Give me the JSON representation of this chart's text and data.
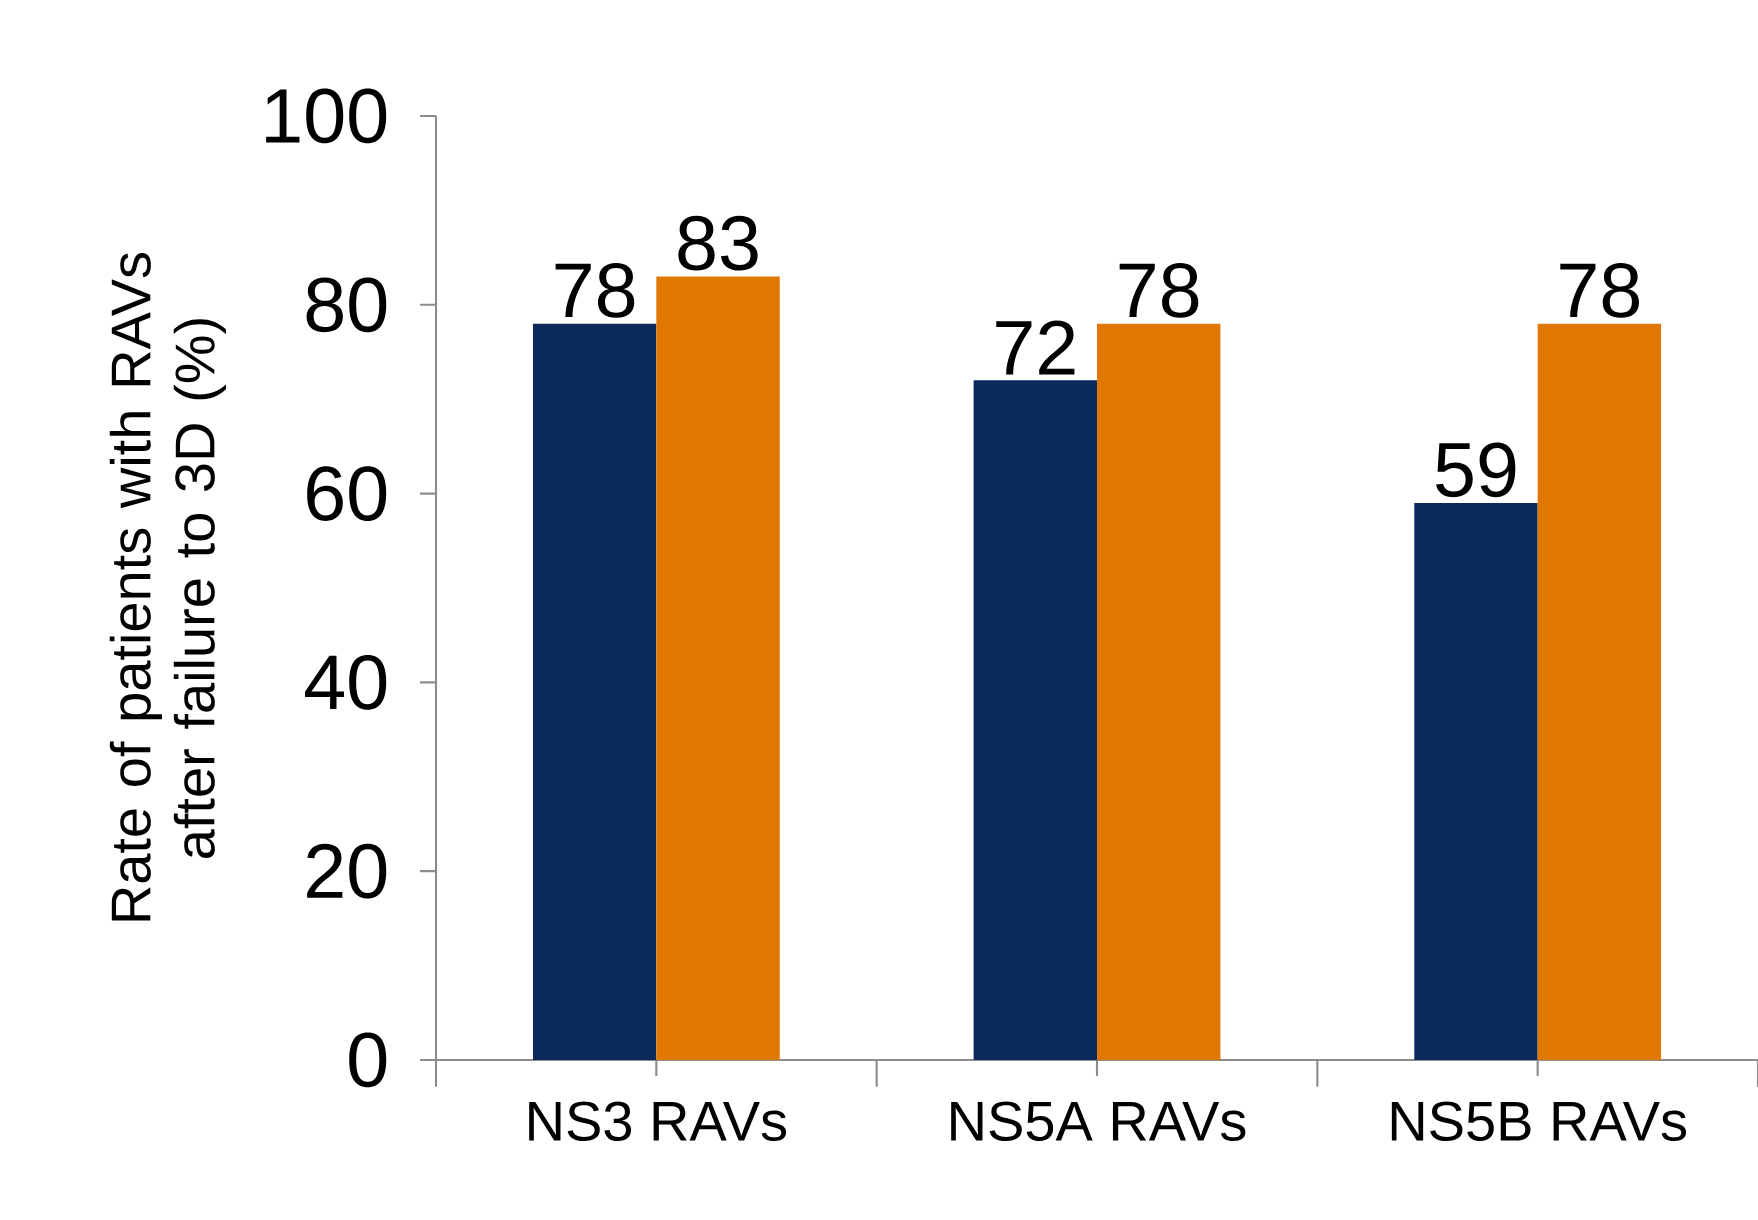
{
  "chart_data": {
    "type": "bar",
    "ylabel": "Rate of patients with RAVs after failure to 3D (%)",
    "categories": [
      "NS3 RAVs",
      "NS5A RAVs",
      "NS5B RAVs"
    ],
    "series": [
      {
        "color": "#0b2a5b",
        "values": [
          78,
          72,
          59
        ]
      },
      {
        "color": "#e07800",
        "values": [
          83,
          78,
          78
        ]
      }
    ],
    "ylim": [
      0,
      100
    ],
    "yticks": [
      0,
      20,
      40,
      60,
      80,
      100
    ],
    "data_labels": true
  }
}
